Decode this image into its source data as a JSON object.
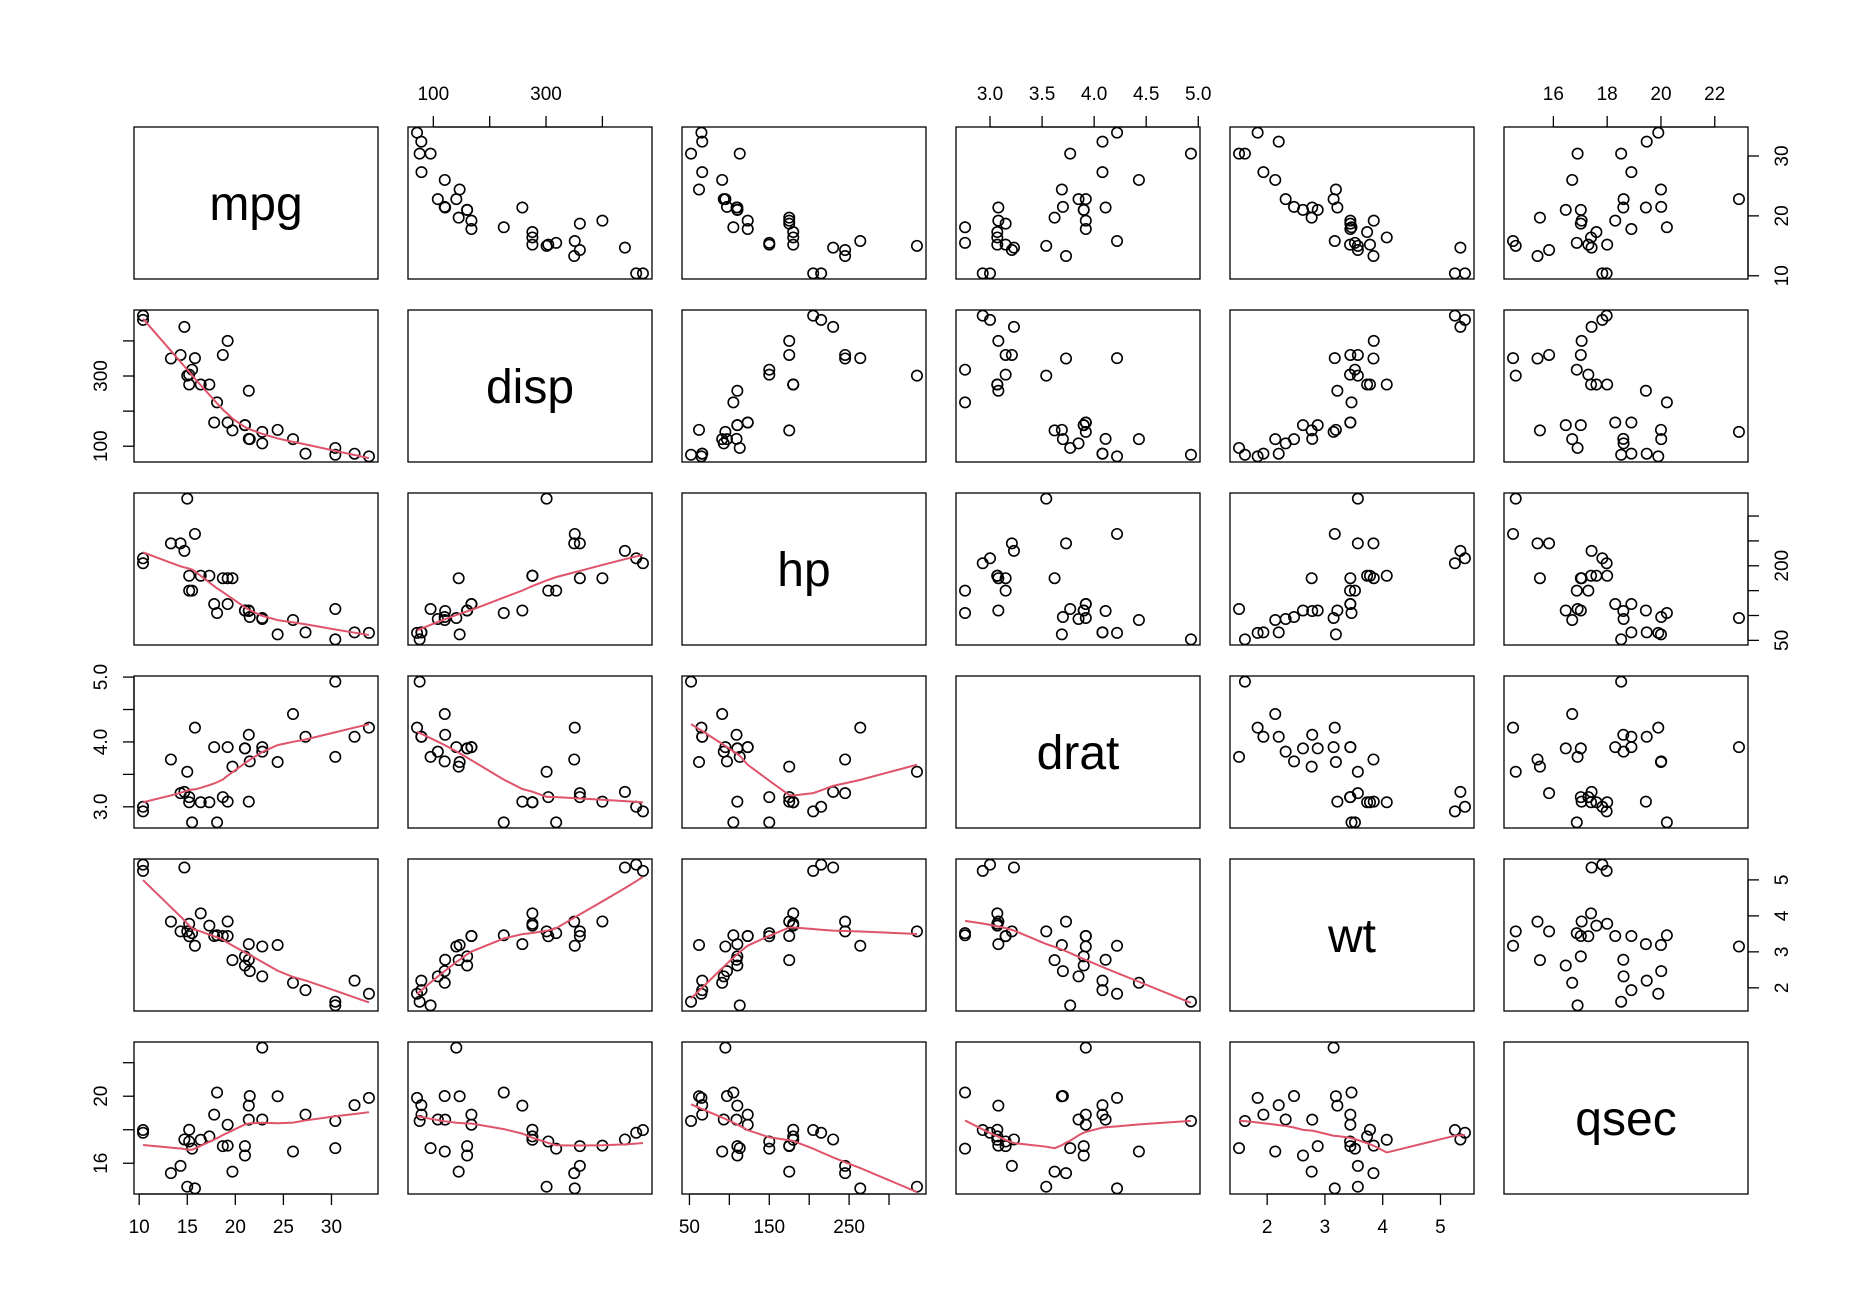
{
  "chart_data": {
    "type": "scatter",
    "title": "",
    "variables": [
      "mpg",
      "disp",
      "hp",
      "drat",
      "wt",
      "qsec"
    ],
    "axes": {
      "mpg": {
        "range": [
          10.4,
          33.9
        ],
        "ticks": [
          10,
          15,
          20,
          25,
          30
        ],
        "right_ticks": [
          10,
          20,
          30
        ]
      },
      "disp": {
        "range": [
          71.1,
          472
        ],
        "ticks": [
          100,
          200,
          300,
          400
        ],
        "tick_labels": [
          "100",
          "",
          "300",
          ""
        ]
      },
      "hp": {
        "range": [
          52,
          335
        ],
        "ticks": [
          50,
          100,
          150,
          200,
          250,
          300
        ],
        "tick_labels": [
          "50",
          "",
          "150",
          "",
          "250",
          ""
        ],
        "right_ticks": [
          50,
          100,
          150,
          200,
          250,
          300
        ],
        "right_labels": [
          "50",
          "",
          "",
          "200",
          "",
          ""
        ]
      },
      "drat": {
        "range": [
          2.76,
          4.93
        ],
        "ticks": [
          3.0,
          3.5,
          4.0,
          4.5,
          5.0
        ],
        "tick_labels": [
          "3.0",
          "3.5",
          "4.0",
          "4.5",
          "5.0"
        ],
        "left_ticks": [
          3.0,
          3.5,
          4.0,
          4.5,
          5.0
        ],
        "left_labels": [
          "3.0",
          "",
          "4.0",
          "",
          "5.0"
        ]
      },
      "wt": {
        "range": [
          1.513,
          5.424
        ],
        "ticks": [
          2,
          3,
          4,
          5
        ]
      },
      "qsec": {
        "range": [
          14.5,
          22.9
        ],
        "ticks": [
          14,
          16,
          18,
          20,
          22
        ],
        "left_ticks": [
          16,
          18,
          20,
          22
        ],
        "left_labels": [
          "16",
          "",
          "20",
          ""
        ]
      }
    },
    "smoother": {
      "type": "lowess",
      "color": "#DF536B",
      "panels": "lower"
    },
    "point_color": "#000000",
    "observations": [
      {
        "mpg": 21.0,
        "disp": 160.0,
        "hp": 110,
        "drat": 3.9,
        "wt": 2.62,
        "qsec": 16.46
      },
      {
        "mpg": 21.0,
        "disp": 160.0,
        "hp": 110,
        "drat": 3.9,
        "wt": 2.875,
        "qsec": 17.02
      },
      {
        "mpg": 22.8,
        "disp": 108.0,
        "hp": 93,
        "drat": 3.85,
        "wt": 2.32,
        "qsec": 18.61
      },
      {
        "mpg": 21.4,
        "disp": 258.0,
        "hp": 110,
        "drat": 3.08,
        "wt": 3.215,
        "qsec": 19.44
      },
      {
        "mpg": 18.7,
        "disp": 360.0,
        "hp": 175,
        "drat": 3.15,
        "wt": 3.44,
        "qsec": 17.02
      },
      {
        "mpg": 18.1,
        "disp": 225.0,
        "hp": 105,
        "drat": 2.76,
        "wt": 3.46,
        "qsec": 20.22
      },
      {
        "mpg": 14.3,
        "disp": 360.0,
        "hp": 245,
        "drat": 3.21,
        "wt": 3.57,
        "qsec": 15.84
      },
      {
        "mpg": 24.4,
        "disp": 146.7,
        "hp": 62,
        "drat": 3.69,
        "wt": 3.19,
        "qsec": 20.0
      },
      {
        "mpg": 22.8,
        "disp": 140.8,
        "hp": 95,
        "drat": 3.92,
        "wt": 3.15,
        "qsec": 22.9
      },
      {
        "mpg": 19.2,
        "disp": 167.6,
        "hp": 123,
        "drat": 3.92,
        "wt": 3.44,
        "qsec": 18.3
      },
      {
        "mpg": 17.8,
        "disp": 167.6,
        "hp": 123,
        "drat": 3.92,
        "wt": 3.44,
        "qsec": 18.9
      },
      {
        "mpg": 16.4,
        "disp": 275.8,
        "hp": 180,
        "drat": 3.07,
        "wt": 4.07,
        "qsec": 17.4
      },
      {
        "mpg": 17.3,
        "disp": 275.8,
        "hp": 180,
        "drat": 3.07,
        "wt": 3.73,
        "qsec": 17.6
      },
      {
        "mpg": 15.2,
        "disp": 275.8,
        "hp": 180,
        "drat": 3.07,
        "wt": 3.78,
        "qsec": 18.0
      },
      {
        "mpg": 10.4,
        "disp": 472.0,
        "hp": 205,
        "drat": 2.93,
        "wt": 5.25,
        "qsec": 17.98
      },
      {
        "mpg": 10.4,
        "disp": 460.0,
        "hp": 215,
        "drat": 3.0,
        "wt": 5.424,
        "qsec": 17.82
      },
      {
        "mpg": 14.7,
        "disp": 440.0,
        "hp": 230,
        "drat": 3.23,
        "wt": 5.345,
        "qsec": 17.42
      },
      {
        "mpg": 32.4,
        "disp": 78.7,
        "hp": 66,
        "drat": 4.08,
        "wt": 2.2,
        "qsec": 19.47
      },
      {
        "mpg": 30.4,
        "disp": 75.7,
        "hp": 52,
        "drat": 4.93,
        "wt": 1.615,
        "qsec": 18.52
      },
      {
        "mpg": 33.9,
        "disp": 71.1,
        "hp": 65,
        "drat": 4.22,
        "wt": 1.835,
        "qsec": 19.9
      },
      {
        "mpg": 21.5,
        "disp": 120.1,
        "hp": 97,
        "drat": 3.7,
        "wt": 2.465,
        "qsec": 20.01
      },
      {
        "mpg": 15.5,
        "disp": 318.0,
        "hp": 150,
        "drat": 2.76,
        "wt": 3.52,
        "qsec": 16.87
      },
      {
        "mpg": 15.2,
        "disp": 304.0,
        "hp": 150,
        "drat": 3.15,
        "wt": 3.435,
        "qsec": 17.3
      },
      {
        "mpg": 13.3,
        "disp": 350.0,
        "hp": 245,
        "drat": 3.73,
        "wt": 3.84,
        "qsec": 15.41
      },
      {
        "mpg": 19.2,
        "disp": 400.0,
        "hp": 175,
        "drat": 3.08,
        "wt": 3.845,
        "qsec": 17.05
      },
      {
        "mpg": 27.3,
        "disp": 79.0,
        "hp": 66,
        "drat": 4.08,
        "wt": 1.935,
        "qsec": 18.9
      },
      {
        "mpg": 26.0,
        "disp": 120.3,
        "hp": 91,
        "drat": 4.43,
        "wt": 2.14,
        "qsec": 16.7
      },
      {
        "mpg": 30.4,
        "disp": 95.1,
        "hp": 113,
        "drat": 3.77,
        "wt": 1.513,
        "qsec": 16.9
      },
      {
        "mpg": 15.8,
        "disp": 351.0,
        "hp": 264,
        "drat": 4.22,
        "wt": 3.17,
        "qsec": 14.5
      },
      {
        "mpg": 19.7,
        "disp": 145.0,
        "hp": 175,
        "drat": 3.62,
        "wt": 2.77,
        "qsec": 15.5
      },
      {
        "mpg": 15.0,
        "disp": 301.0,
        "hp": 335,
        "drat": 3.54,
        "wt": 3.57,
        "qsec": 14.6
      },
      {
        "mpg": 21.4,
        "disp": 121.0,
        "hp": 109,
        "drat": 4.11,
        "wt": 2.78,
        "qsec": 18.6
      }
    ]
  }
}
